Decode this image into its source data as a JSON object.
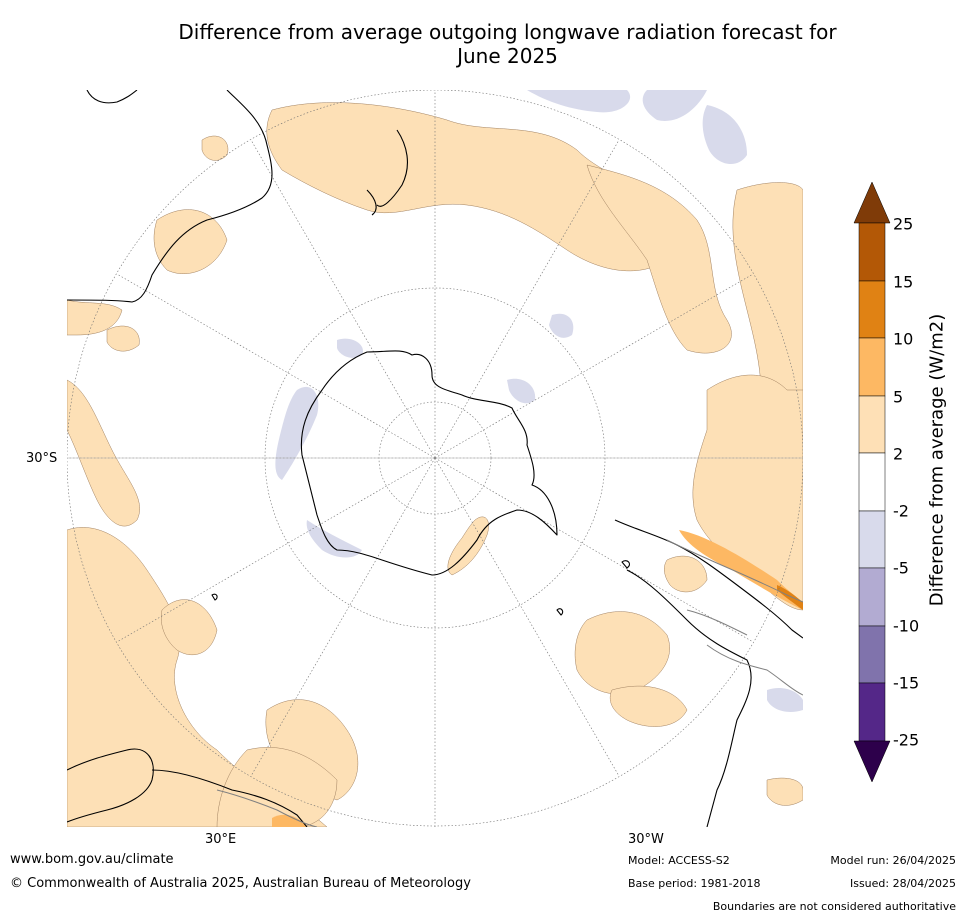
{
  "title": {
    "line1": "Difference from average outgoing longwave radiation forecast for",
    "line2": "June 2025"
  },
  "axis_labels": {
    "lat_30s": "30°S",
    "lon_30e": "30°E",
    "lon_30w": "30°W"
  },
  "colorbar": {
    "title": "Difference from average (W/m2)",
    "levels": [
      "25",
      "15",
      "10",
      "5",
      "2",
      "-2",
      "-5",
      "-10",
      "-15",
      "-25"
    ],
    "colors": {
      "extend_high": "#7f3b08",
      "15_25": "#b35806",
      "10_15": "#e08214",
      "5_10": "#fdb863",
      "2_5": "#fee0b6",
      "neutral": "#ffffff",
      "m5_m2": "#d8daeb",
      "m10_m5": "#b2abd2",
      "m15_m10": "#8073ac",
      "m25_m15": "#542788",
      "extend_low": "#2d004b"
    }
  },
  "map_colors": {
    "positive_2_5": "#fde0b6",
    "positive_5_10": "#fdb863",
    "positive_10_15": "#e08214",
    "negative_m2_m5": "#d8daeb",
    "coast": "#000000",
    "border": "#808080",
    "grid": "#707070"
  },
  "footer": {
    "url": "www.bom.gov.au/climate",
    "copyright": "© Commonwealth of Australia 2025, Australian Bureau of Meteorology",
    "model": "Model: ACCESS-S2",
    "base_period": "Base period: 1981-2018",
    "model_run": "Model run: 26/04/2025",
    "issued": "Issued: 28/04/2025",
    "disclaimer": "Boundaries are not considered authoritative"
  }
}
